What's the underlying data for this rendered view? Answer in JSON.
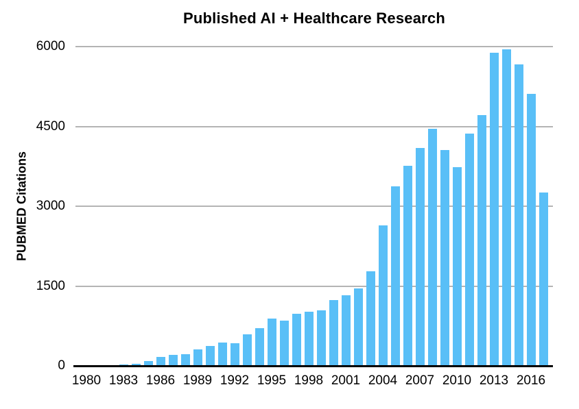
{
  "chart_data": {
    "type": "bar",
    "title": "Published AI + Healthcare Research",
    "ylabel": "PUBMED Citations",
    "xlabel": "",
    "ylim": [
      0,
      6000
    ],
    "yticks": [
      0,
      1500,
      3000,
      4500,
      6000
    ],
    "xticks": [
      1980,
      1983,
      1986,
      1989,
      1992,
      1995,
      1998,
      2001,
      2004,
      2007,
      2010,
      2013,
      2016
    ],
    "categories": [
      1980,
      1981,
      1982,
      1983,
      1984,
      1985,
      1986,
      1987,
      1988,
      1989,
      1990,
      1991,
      1992,
      1993,
      1994,
      1995,
      1996,
      1997,
      1998,
      1999,
      2000,
      2001,
      2002,
      2003,
      2004,
      2005,
      2006,
      2007,
      2008,
      2009,
      2010,
      2011,
      2012,
      2013,
      2014,
      2015,
      2016,
      2017
    ],
    "values": [
      0,
      3,
      10,
      20,
      40,
      85,
      165,
      200,
      225,
      310,
      370,
      440,
      430,
      595,
      710,
      890,
      855,
      980,
      1015,
      1045,
      1240,
      1320,
      1455,
      1775,
      2645,
      3380,
      3755,
      4090,
      4460,
      4055,
      3740,
      4360,
      4710,
      5880,
      5945,
      5660,
      5110,
      3255
    ],
    "grid": true,
    "legend": "none",
    "colors": {
      "bar": "#59BFF7",
      "gridline": "#B4B4B4",
      "axis": "#000000",
      "text": "#000000",
      "background": "#FFFFFF"
    }
  }
}
